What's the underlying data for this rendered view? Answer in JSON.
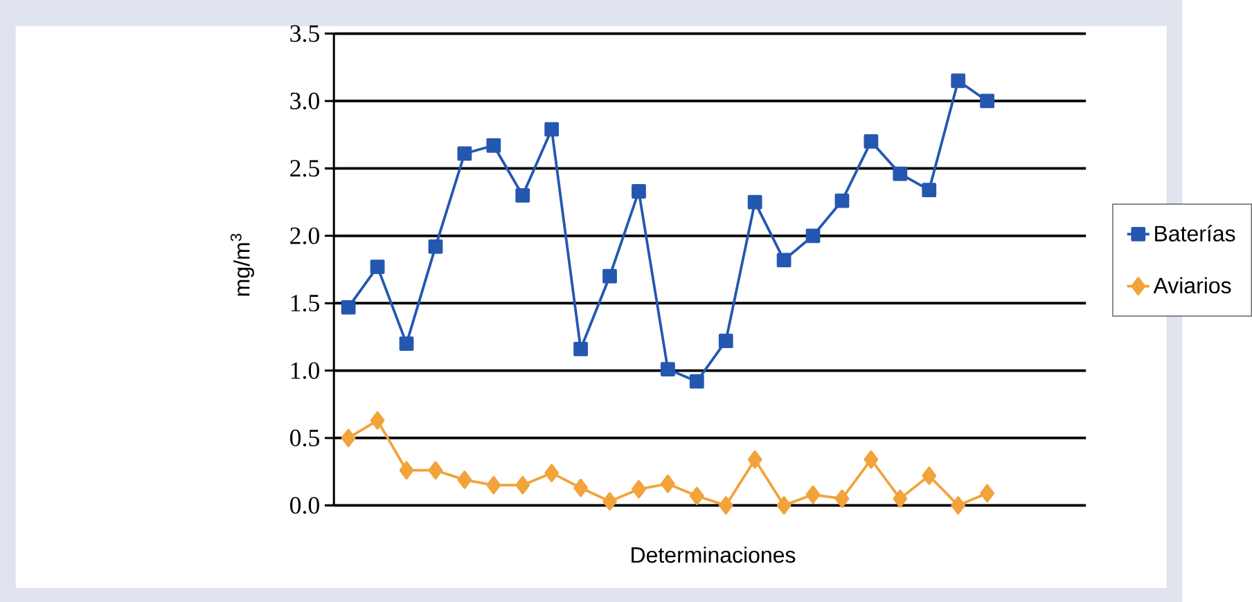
{
  "chart_data": {
    "type": "line",
    "xlabel": "Determinaciones",
    "ylabel": "mg/m$^{3}$",
    "categories": [
      null,
      null,
      null,
      null,
      null,
      null,
      null,
      null,
      null,
      null,
      null,
      null,
      null,
      null,
      null,
      null,
      null,
      null,
      null,
      null,
      null,
      null,
      null
    ],
    "series": [
      {
        "name": "Baterías",
        "color": "#2457b0",
        "marker": "square",
        "values": [
          1.47,
          1.77,
          1.2,
          1.92,
          2.61,
          2.67,
          2.3,
          2.79,
          1.16,
          1.7,
          2.33,
          1.01,
          0.92,
          1.22,
          2.25,
          1.82,
          2.0,
          2.26,
          2.7,
          2.46,
          2.34,
          3.15,
          3.0
        ]
      },
      {
        "name": "Aviarios",
        "color": "#f2a33a",
        "marker": "diamond",
        "values": [
          0.5,
          0.63,
          0.26,
          0.26,
          0.19,
          0.15,
          0.15,
          0.24,
          0.13,
          0.03,
          0.12,
          0.16,
          0.07,
          0.0,
          0.34,
          0.0,
          0.08,
          0.05,
          0.34,
          0.05,
          0.22,
          0.0,
          0.09
        ]
      }
    ],
    "ylim": [
      0,
      3.5
    ],
    "yticks": [
      {
        "value": 0,
        "label": "0.0"
      },
      {
        "value": 0.5,
        "label": "0.5"
      },
      {
        "value": 1,
        "label": "1.0"
      },
      {
        "value": 1.5,
        "label": "1.5"
      },
      {
        "value": 2,
        "label": "2.0"
      },
      {
        "value": 2.5,
        "label": "2.5"
      },
      {
        "value": 3,
        "label": "3.0"
      },
      {
        "value": 3.5,
        "label": "3.5"
      }
    ],
    "grid": "y",
    "legend": "right",
    "line_style": "solid",
    "tick_labels": "y"
  }
}
